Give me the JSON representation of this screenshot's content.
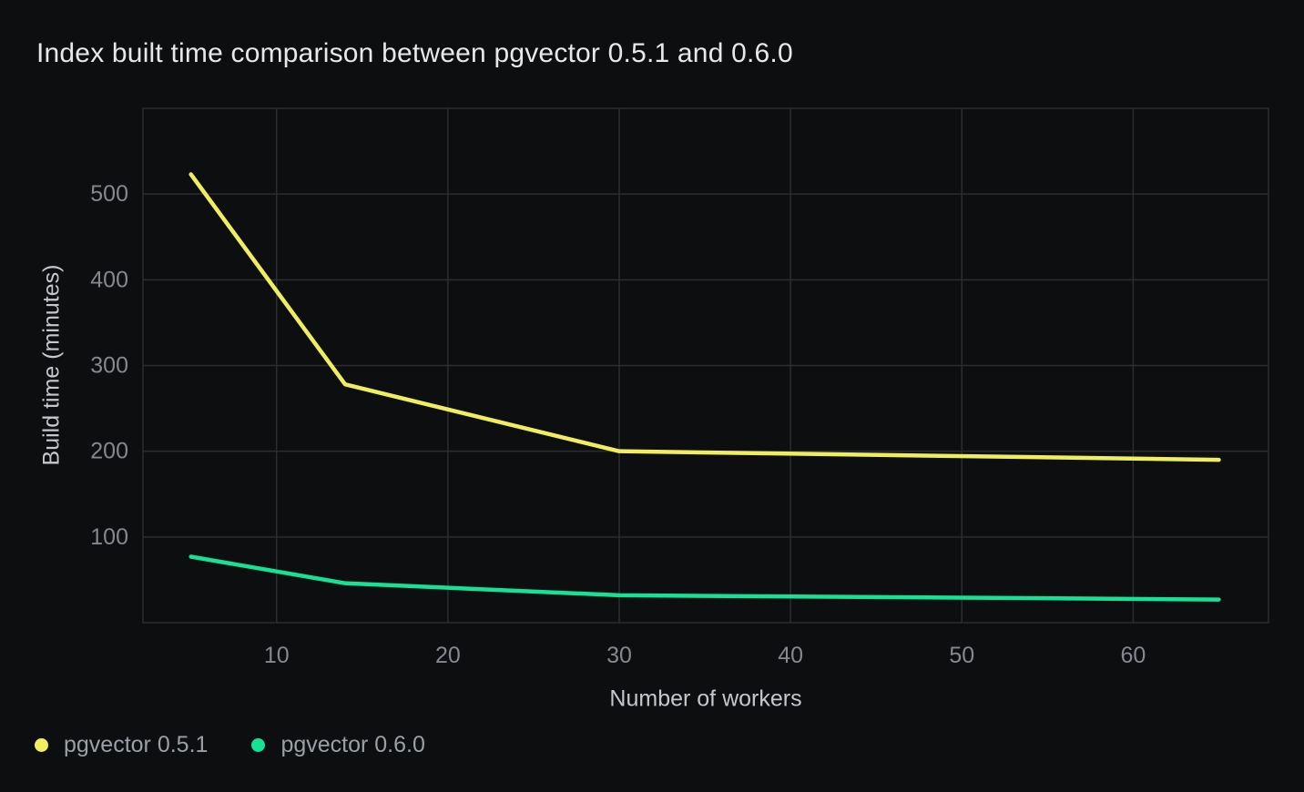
{
  "chart_data": {
    "type": "line",
    "title": "Index built time comparison between pgvector 0.5.1 and 0.6.0",
    "xlabel": "Number of workers",
    "ylabel": "Build time (minutes)",
    "x_ticks": [
      10,
      20,
      30,
      40,
      50,
      60
    ],
    "y_ticks": [
      100,
      200,
      300,
      400,
      500
    ],
    "x_range": [
      2.2,
      67.9
    ],
    "y_range": [
      0,
      600
    ],
    "grid": true,
    "legend_position": "bottom-left",
    "background_color": "#0d0e10",
    "grid_color": "#2c2d31",
    "series": [
      {
        "name": "pgvector 0.5.1",
        "color": "#f0ee5e",
        "x": [
          5,
          14,
          30,
          65
        ],
        "values": [
          523,
          278,
          200,
          190
        ]
      },
      {
        "name": "pgvector 0.6.0",
        "color": "#15e294",
        "x": [
          5,
          14,
          30,
          65
        ],
        "values": [
          77,
          46,
          32,
          27
        ]
      }
    ]
  }
}
